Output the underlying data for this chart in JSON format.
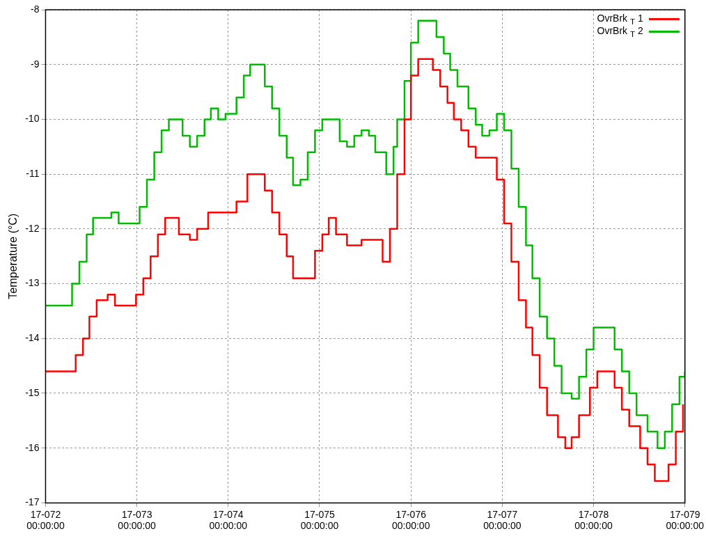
{
  "chart_data": {
    "type": "step",
    "ylabel": "Temperature (°C)",
    "xlim": [
      "--03-13",
      "--03-20"
    ],
    "ylim": [
      -17,
      -8
    ],
    "xticks": [
      {
        "value": "--03-13",
        "label": "17-072\n00:00:00"
      },
      {
        "value": "--03-14",
        "label": "17-073\n00:00:00"
      },
      {
        "value": "--03-15",
        "label": "17-074\n00:00:00"
      },
      {
        "value": "--03-16",
        "label": "17-075\n00:00:00"
      },
      {
        "value": "--03-17",
        "label": "17-076\n00:00:00"
      },
      {
        "value": "--03-18",
        "label": "17-077\n00:00:00"
      },
      {
        "value": "--03-19",
        "label": "17-078\n00:00:00"
      },
      {
        "value": "--03-20",
        "label": "17-079\n00:00:00"
      }
    ],
    "yticks": [
      -17,
      -16,
      -15,
      -14,
      -13,
      -12,
      -11,
      -10,
      -9,
      -8
    ],
    "grid": true,
    "legend": "top right",
    "marker": "none",
    "line_style": "solid",
    "series": [
      {
        "name": "OvrBrk $_{T}$ 1",
        "color": "#ff0000",
        "x": [
          "--03-13T00:00",
          "--03-13T06:58",
          "--03-13T07:55",
          "--03-13T09:50",
          "--03-13T11:31",
          "--03-13T13:26",
          "--03-13T16:19",
          "--03-13T18:14",
          "--03-13T22:05",
          "--03-13T23:46",
          "--03-14T01:41",
          "--03-14T03:36",
          "--03-14T05:31",
          "--03-14T07:26",
          "--03-14T09:07",
          "--03-14T11:02",
          "--03-14T13:55",
          "--03-14T15:50",
          "--03-14T18:43",
          "--03-15T00:14",
          "--03-15T02:10",
          "--03-15T05:02",
          "--03-15T07:41",
          "--03-15T09:36",
          "--03-15T11:31",
          "--03-15T13:26",
          "--03-15T15:22",
          "--03-15T17:02",
          "--03-15T20:53",
          "--03-15T22:48",
          "--03-16T00:43",
          "--03-16T02:24",
          "--03-16T04:19",
          "--03-16T07:12",
          "--03-16T11:02",
          "--03-16T13:41",
          "--03-16T16:34",
          "--03-16T18:29",
          "--03-16T20:24",
          "--03-16T22:19",
          "--03-17T00:00",
          "--03-17T01:55",
          "--03-17T03:50",
          "--03-17T05:46",
          "--03-17T07:41",
          "--03-17T09:36",
          "--03-17T11:17",
          "--03-17T13:12",
          "--03-17T15:07",
          "--03-17T17:02",
          "--03-17T20:38",
          "--03-17T22:34",
          "--03-18T00:29",
          "--03-18T02:24",
          "--03-18T04:19",
          "--03-18T06:14",
          "--03-18T07:55",
          "--03-18T09:50",
          "--03-18T11:46",
          "--03-18T14:38",
          "--03-18T16:34",
          "--03-18T18:14",
          "--03-18T20:10",
          "--03-18T23:02",
          "--03-19T00:58",
          "--03-19T03:50",
          "--03-19T05:31",
          "--03-19T07:26",
          "--03-19T09:22",
          "--03-19T12:14",
          "--03-19T14:10",
          "--03-19T16:05",
          "--03-19T17:46",
          "--03-19T19:41",
          "--03-19T21:36",
          "--03-19T23:30"
        ],
        "values": [
          -14.6,
          -14.6,
          -14.3,
          -14.0,
          -13.6,
          -13.3,
          -13.2,
          -13.4,
          -13.4,
          -13.2,
          -12.9,
          -12.5,
          -12.1,
          -11.8,
          -11.8,
          -12.1,
          -12.2,
          -12.0,
          -11.7,
          -11.7,
          -11.5,
          -11.0,
          -11.0,
          -11.3,
          -11.7,
          -12.1,
          -12.5,
          -12.9,
          -12.9,
          -12.4,
          -12.1,
          -11.8,
          -12.1,
          -12.3,
          -12.2,
          -12.2,
          -12.6,
          -12.0,
          -11.0,
          -10.0,
          -9.2,
          -8.9,
          -8.9,
          -9.1,
          -9.4,
          -9.7,
          -10.0,
          -10.2,
          -10.5,
          -10.7,
          -10.7,
          -11.1,
          -11.9,
          -12.6,
          -13.3,
          -13.8,
          -14.3,
          -14.9,
          -15.4,
          -15.8,
          -16.0,
          -15.8,
          -15.4,
          -14.9,
          -14.6,
          -14.6,
          -14.9,
          -15.3,
          -15.6,
          -16.0,
          -16.3,
          -16.6,
          -16.6,
          -16.3,
          -15.7,
          -15.2
        ]
      },
      {
        "name": "OvrBrk $_{T}$ 2",
        "color": "#00bb00",
        "x": [
          "--03-13T00:00",
          "--03-13T05:02",
          "--03-13T06:58",
          "--03-13T08:53",
          "--03-13T10:48",
          "--03-13T12:29",
          "--03-13T17:17",
          "--03-13T19:12",
          "--03-13T22:48",
          "--03-14T00:43",
          "--03-14T02:38",
          "--03-14T04:34",
          "--03-14T06:29",
          "--03-14T08:24",
          "--03-14T10:05",
          "--03-14T12:00",
          "--03-14T13:55",
          "--03-14T15:50",
          "--03-14T17:46",
          "--03-14T19:26",
          "--03-14T21:22",
          "--03-14T23:17",
          "--03-15T02:10",
          "--03-15T04:05",
          "--03-15T05:46",
          "--03-15T07:41",
          "--03-15T09:36",
          "--03-15T11:31",
          "--03-15T13:26",
          "--03-15T15:22",
          "--03-15T17:02",
          "--03-15T18:58",
          "--03-15T20:53",
          "--03-15T22:48",
          "--03-16T00:43",
          "--03-16T03:22",
          "--03-16T05:17",
          "--03-16T07:12",
          "--03-16T09:07",
          "--03-16T11:02",
          "--03-16T12:58",
          "--03-16T14:38",
          "--03-16T17:31",
          "--03-16T19:26",
          "--03-16T20:24",
          "--03-16T22:19",
          "--03-17T00:00",
          "--03-17T01:55",
          "--03-17T04:48",
          "--03-17T06:43",
          "--03-17T08:38",
          "--03-17T10:19",
          "--03-17T12:14",
          "--03-17T15:07",
          "--03-17T17:02",
          "--03-17T18:43",
          "--03-17T20:38",
          "--03-17T22:34",
          "--03-18T00:29",
          "--03-18T02:24",
          "--03-18T04:19",
          "--03-18T06:14",
          "--03-18T07:55",
          "--03-18T09:50",
          "--03-18T11:46",
          "--03-18T13:41",
          "--03-18T15:36",
          "--03-18T18:14",
          "--03-18T20:10",
          "--03-18T22:05",
          "--03-19T00:00",
          "--03-19T03:50",
          "--03-19T05:31",
          "--03-19T07:26",
          "--03-19T09:22",
          "--03-19T11:17",
          "--03-19T14:10",
          "--03-19T16:48",
          "--03-19T18:43",
          "--03-19T20:38",
          "--03-19T22:34",
          "--03-20T00:00"
        ],
        "values": [
          -13.4,
          -13.4,
          -13.0,
          -12.6,
          -12.1,
          -11.8,
          -11.7,
          -11.9,
          -11.9,
          -11.6,
          -11.1,
          -10.6,
          -10.2,
          -10.0,
          -10.0,
          -10.3,
          -10.5,
          -10.3,
          -10.0,
          -9.8,
          -10.0,
          -9.9,
          -9.6,
          -9.2,
          -9.0,
          -9.0,
          -9.4,
          -9.8,
          -10.3,
          -10.7,
          -11.2,
          -11.1,
          -10.6,
          -10.2,
          -10.0,
          -10.0,
          -10.4,
          -10.5,
          -10.3,
          -10.2,
          -10.3,
          -10.6,
          -11.0,
          -10.5,
          -10.0,
          -9.3,
          -8.6,
          -8.2,
          -8.2,
          -8.5,
          -8.8,
          -9.1,
          -9.4,
          -9.8,
          -10.1,
          -10.3,
          -10.2,
          -9.9,
          -10.2,
          -10.9,
          -11.6,
          -12.3,
          -12.9,
          -13.6,
          -14.0,
          -14.5,
          -15.0,
          -15.1,
          -14.7,
          -14.2,
          -13.8,
          -13.8,
          -14.2,
          -14.6,
          -15.0,
          -15.4,
          -15.7,
          -16.0,
          -15.7,
          -15.2,
          -14.7,
          -14.6
        ]
      }
    ]
  }
}
